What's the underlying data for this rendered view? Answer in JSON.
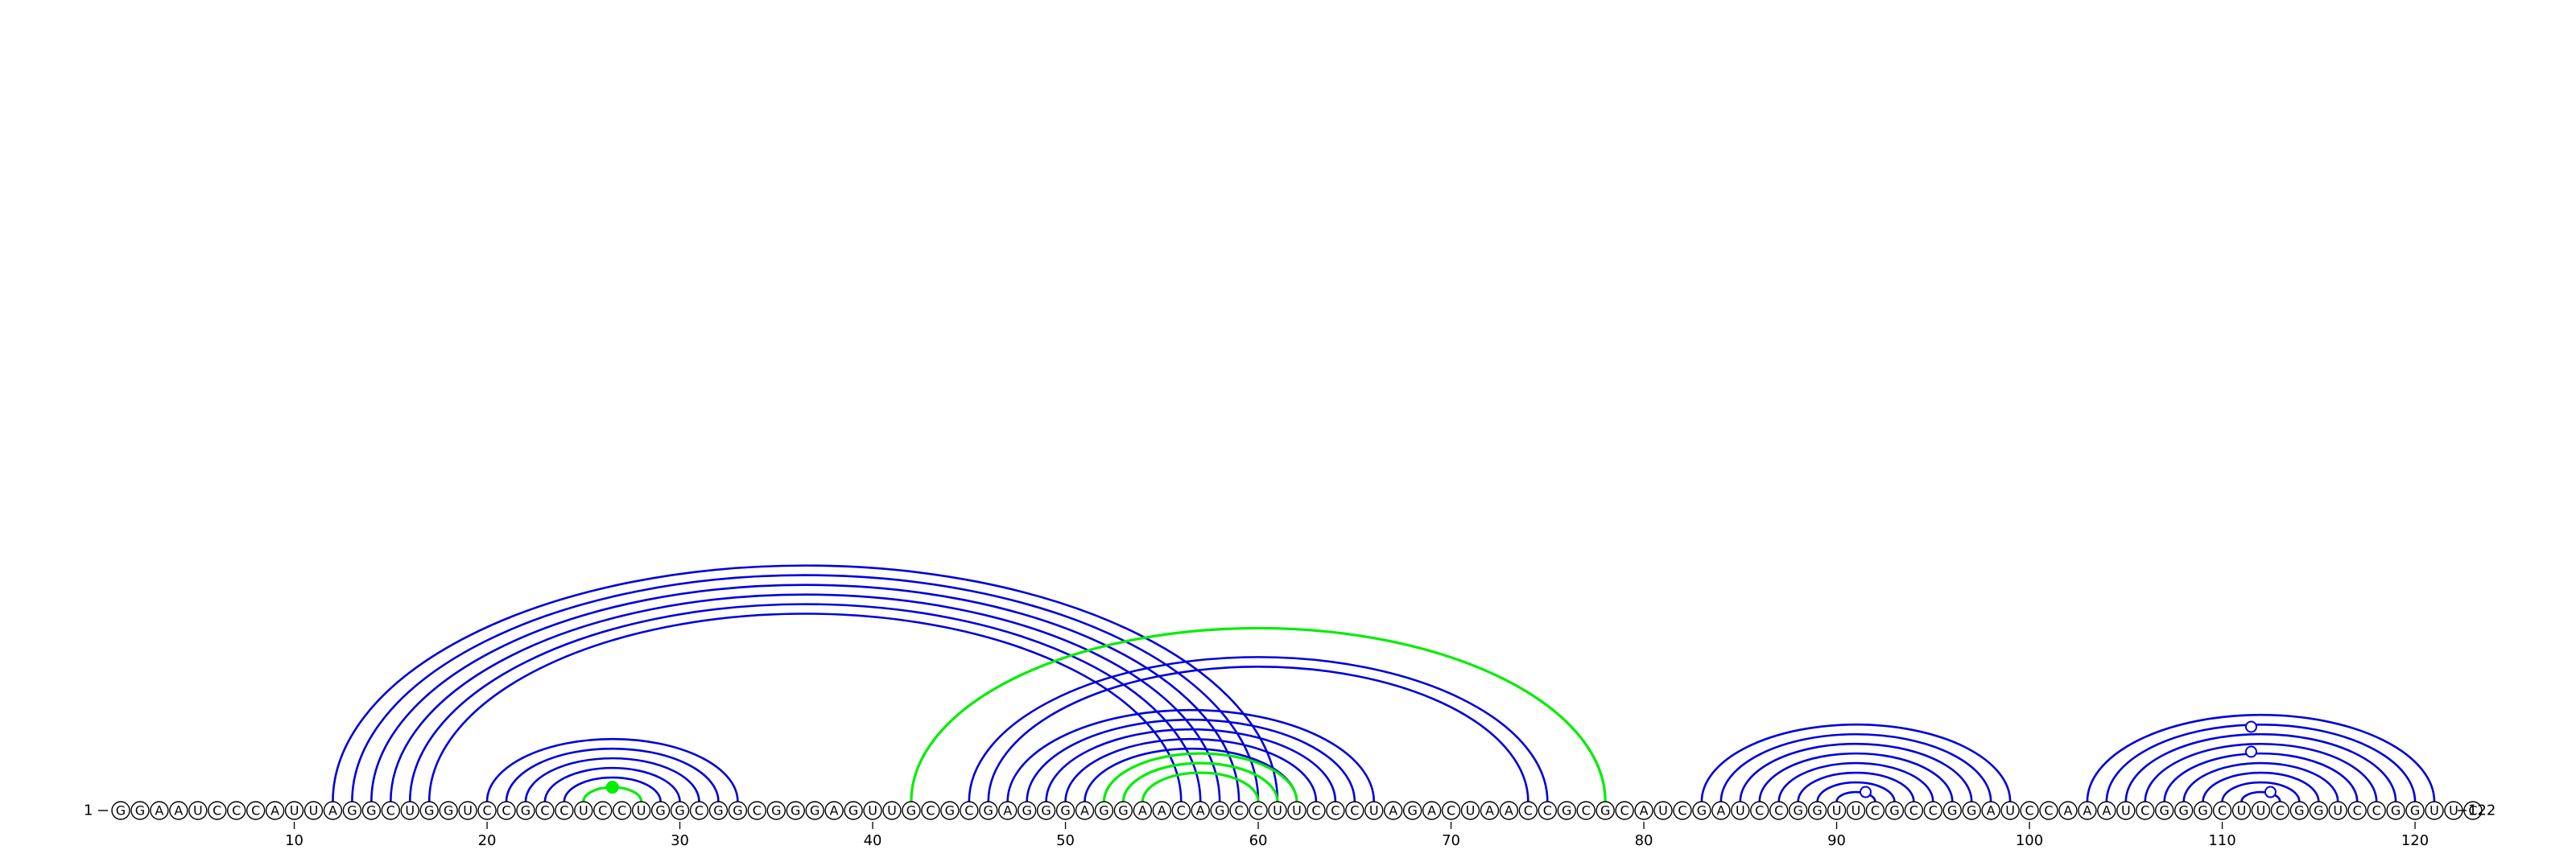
{
  "colors": {
    "helix_primary": "#0000dd",
    "helix_pseudoknot": "#00ee00",
    "nucleotide_outline": "#000000",
    "background": "#ffffff"
  },
  "sequence": {
    "bases": "GGAAUCCCAUUAGGCUGGUCCGCCUCCUGGCGGCGGGAGUUGCGCGAGGGAGGAACAGCCUUCCCUAGACUAACCGCGCAUCGAUCCGGUUCGCCGGAUCCAAAUCGGGCUUCGGUCCGGUUC",
    "length": 122,
    "start_label": "1",
    "end_label": "122"
  },
  "tick_labels": [
    "10",
    "20",
    "30",
    "40",
    "50",
    "60",
    "70",
    "80",
    "90",
    "100",
    "110",
    "120"
  ],
  "helices": [
    {
      "name": "long-range-helix",
      "color": "blue",
      "pairs": [
        [
          12,
          61
        ],
        [
          13,
          60
        ],
        [
          14,
          59
        ],
        [
          15,
          58
        ],
        [
          16,
          57
        ],
        [
          17,
          56
        ]
      ]
    },
    {
      "name": "hairpin-helix-1",
      "color": "blue",
      "pairs": [
        [
          20,
          33
        ],
        [
          21,
          32
        ],
        [
          22,
          31
        ],
        [
          23,
          30
        ],
        [
          24,
          29
        ]
      ]
    },
    {
      "name": "hairpin-helix-1-closing",
      "color": "green",
      "pairs": [
        [
          25,
          28
        ]
      ]
    },
    {
      "name": "outer-pseudoknot",
      "color": "green",
      "pairs": [
        [
          42,
          78
        ]
      ]
    },
    {
      "name": "multibranch-helix",
      "color": "blue",
      "pairs": [
        [
          45,
          75
        ],
        [
          46,
          74
        ]
      ]
    },
    {
      "name": "hairpin-helix-2",
      "color": "blue",
      "pairs": [
        [
          47,
          66
        ],
        [
          48,
          65
        ],
        [
          49,
          64
        ],
        [
          50,
          63
        ],
        [
          51,
          62
        ]
      ]
    },
    {
      "name": "pseudoknot-kissing",
      "color": "green",
      "pairs": [
        [
          52,
          62
        ],
        [
          53,
          61
        ],
        [
          54,
          60
        ]
      ]
    },
    {
      "name": "hairpin-helix-3",
      "color": "blue",
      "pairs": [
        [
          83,
          99
        ],
        [
          84,
          98
        ],
        [
          85,
          97
        ],
        [
          86,
          96
        ],
        [
          87,
          95
        ],
        [
          88,
          94
        ],
        [
          89,
          93
        ],
        [
          90,
          92
        ]
      ]
    },
    {
      "name": "hairpin-helix-4",
      "color": "blue",
      "pairs": [
        [
          103,
          121
        ],
        [
          104,
          120
        ],
        [
          105,
          119
        ],
        [
          106,
          118
        ],
        [
          107,
          117
        ],
        [
          108,
          116
        ],
        [
          109,
          115
        ],
        [
          110,
          114
        ],
        [
          111,
          113
        ]
      ]
    }
  ],
  "hairpin_loop_markers": [
    {
      "position": 26,
      "style": "filled",
      "color": "green"
    },
    {
      "position": 91,
      "style": "open",
      "color": "blue"
    },
    {
      "position": 112,
      "style": "open",
      "color": "blue"
    }
  ]
}
